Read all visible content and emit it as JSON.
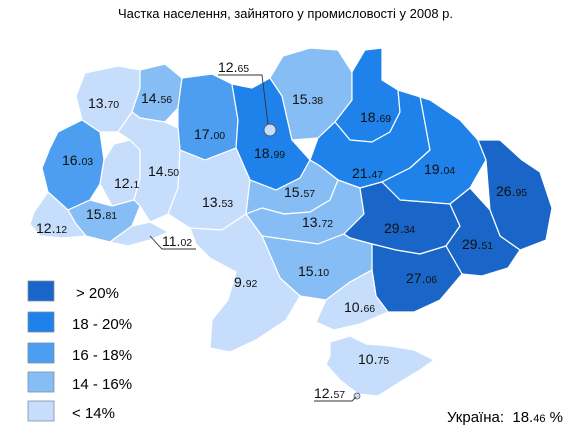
{
  "title": "Частка населення, зайнятого у промисловості  у 2008 р.",
  "colors": {
    "gt20": "#1a66c8",
    "c18_20": "#1e82ea",
    "c16_18": "#4d9ef0",
    "c14_16": "#86bdf4",
    "lt14": "#c6ddfb",
    "background": "#ffffff"
  },
  "legend": [
    {
      "label": "> 20%",
      "color": "#1a66c8"
    },
    {
      "label": "18 - 20%",
      "color": "#1e82ea"
    },
    {
      "label": "16 - 18%",
      "color": "#4d9ef0"
    },
    {
      "label": "14 - 16%",
      "color": "#86bdf4"
    },
    {
      "label": "< 14%",
      "color": "#c6ddfb"
    }
  ],
  "regions": [
    {
      "int": "13.",
      "dec": "70",
      "value": 13.7
    },
    {
      "int": "14.",
      "dec": "56",
      "value": 14.56
    },
    {
      "int": "17.",
      "dec": "00",
      "value": 17.0
    },
    {
      "int": "15.",
      "dec": "38",
      "value": 15.38
    },
    {
      "int": "18.",
      "dec": "69",
      "value": 18.69
    },
    {
      "int": "16.",
      "dec": "03",
      "value": 16.03
    },
    {
      "int": "12.",
      "dec": "1",
      "value": 12.1
    },
    {
      "int": "14.",
      "dec": "50",
      "value": 14.5
    },
    {
      "int": "18.",
      "dec": "99",
      "value": 18.99
    },
    {
      "int": "21.",
      "dec": "47",
      "value": 21.47
    },
    {
      "int": "19.",
      "dec": "04",
      "value": 19.04
    },
    {
      "int": "26.",
      "dec": "95",
      "value": 26.95
    },
    {
      "int": "15.",
      "dec": "81",
      "value": 15.81
    },
    {
      "int": "12.",
      "dec": "12",
      "value": 12.12
    },
    {
      "int": "13.",
      "dec": "53",
      "value": 13.53
    },
    {
      "int": "15.",
      "dec": "57",
      "value": 15.57
    },
    {
      "int": "13.",
      "dec": "72",
      "value": 13.72
    },
    {
      "int": "29.",
      "dec": "34",
      "value": 29.34
    },
    {
      "int": "29.",
      "dec": "51",
      "value": 29.51
    },
    {
      "int": "27.",
      "dec": "06",
      "value": 27.06
    },
    {
      "int": "15.",
      "dec": "10",
      "value": 15.1
    },
    {
      "int": "9.",
      "dec": "92",
      "value": 9.92
    },
    {
      "int": "10.",
      "dec": "66",
      "value": 10.66
    },
    {
      "int": "10.",
      "dec": "75",
      "value": 10.75
    }
  ],
  "callouts": [
    {
      "int": "12.",
      "dec": "65",
      "value": 12.65
    },
    {
      "int": "11.",
      "dec": "02",
      "value": 11.02
    },
    {
      "int": "12.",
      "dec": "57",
      "value": 12.57
    }
  ],
  "total": {
    "label": "Україна:",
    "int": "18.",
    "dec": "46",
    "unit": " %"
  }
}
